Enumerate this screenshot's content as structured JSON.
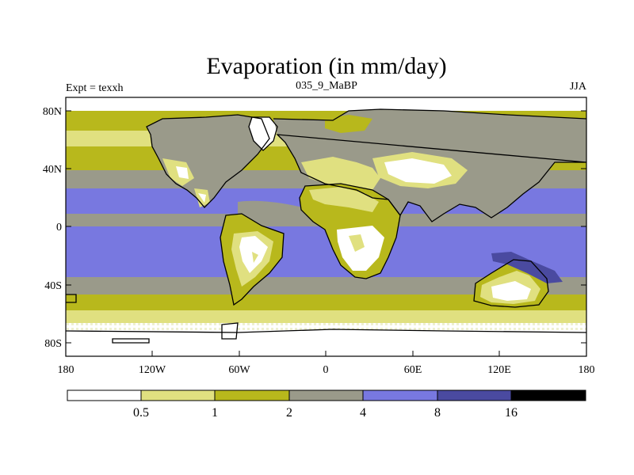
{
  "figure": {
    "title": "Evaporation (in mm/day)",
    "left_label": "Expt = texxh",
    "center_label": "035_9_MaBP",
    "right_label": "JJA"
  },
  "map": {
    "projection": "cylindrical equidistant",
    "lon_range": [
      -180,
      180
    ],
    "lat_range": [
      -90,
      90
    ],
    "y_ticks": [
      {
        "lat": 80,
        "label": "80N"
      },
      {
        "lat": 40,
        "label": "40N"
      },
      {
        "lat": 0,
        "label": "0"
      },
      {
        "lat": -40,
        "label": "40S"
      },
      {
        "lat": -80,
        "label": "80S"
      }
    ],
    "x_ticks": [
      {
        "lon": -180,
        "label": "180"
      },
      {
        "lon": -120,
        "label": "120W"
      },
      {
        "lon": -60,
        "label": "60W"
      },
      {
        "lon": 0,
        "label": "0"
      },
      {
        "lon": 60,
        "label": "60E"
      },
      {
        "lon": 120,
        "label": "120E"
      },
      {
        "lon": 180,
        "label": "180"
      }
    ]
  },
  "colorbar": {
    "colors": [
      "#ffffff",
      "#e0e080",
      "#b8b81c",
      "#9a9a8a",
      "#7878e0",
      "#4a4aa0",
      "#000000"
    ],
    "labels": [
      "0.5",
      "1",
      "2",
      "4",
      "8",
      "16"
    ]
  }
}
